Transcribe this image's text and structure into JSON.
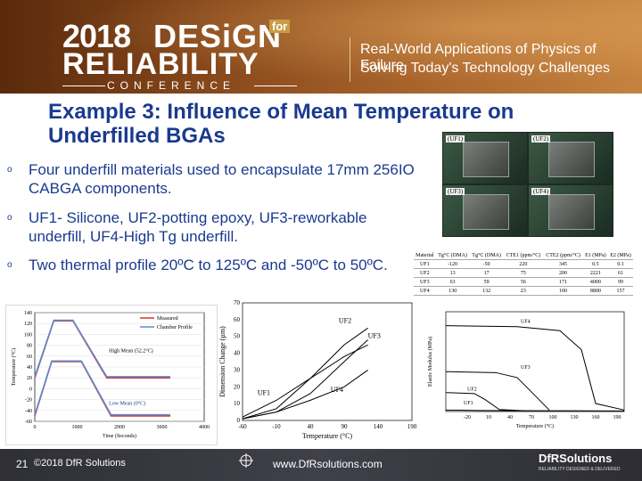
{
  "header": {
    "logo_year": "2018",
    "logo_design": "DESiGN",
    "logo_for": "for",
    "logo_reliability": "RELIABILITY",
    "logo_conference": "CONFERENCE",
    "tagline_1": "Real-World Applications of Physics of Failure",
    "tagline_2": "Solving Today's Technology Challenges"
  },
  "slide": {
    "title": "Example 3: Influence of Mean Temperature on Underfilled BGAs",
    "bullets": [
      "Four underfill materials used to encapsulate 17mm 256IO CABGA components.",
      "UF1- Silicone, UF2-potting epoxy, UF3-reworkable underfill, UF4-High Tg underfill.",
      "Two thermal profile 20ºC to 125ºC and -50ºC to 50ºC."
    ],
    "bullet_marker": "o"
  },
  "photos": {
    "labels": [
      "(UF1)",
      "(UF2)",
      "(UF3)",
      "(UF4)"
    ]
  },
  "table": {
    "headers": [
      "Material",
      "Tg°C (DMA)",
      "Tg°C (DMA)",
      "CTE1 (ppm/°C)",
      "CTE2 (ppm/°C)",
      "E1 (MPa)",
      "E2 (MPa)"
    ],
    "rows": [
      [
        "UF1",
        "-120",
        "-50",
        "220",
        "345",
        "0.5",
        "0.1"
      ],
      [
        "UF2",
        "13",
        "17",
        "75",
        "200",
        "2221",
        "61"
      ],
      [
        "UF3",
        "63",
        "59",
        "56",
        "171",
        "4000",
        "99"
      ],
      [
        "UF4",
        "130",
        "132",
        "23",
        "100",
        "8800",
        "157"
      ]
    ]
  },
  "chart_data": [
    {
      "type": "line",
      "title": "",
      "xlabel": "Time (Seconds)",
      "ylabel": "Temperature (°C)",
      "xlim": [
        0,
        4000
      ],
      "ylim": [
        -60,
        140
      ],
      "x_ticks": [
        "0",
        "1000",
        "2000",
        "3000",
        "4000"
      ],
      "y_ticks": [
        "-60",
        "-40",
        "-20",
        "0",
        "20",
        "40",
        "60",
        "80",
        "100",
        "120",
        "140"
      ],
      "legend": [
        "Measured",
        "Chamber Profile"
      ],
      "legend_position": "top-right",
      "annotations": [
        "High Mean (52.2°C)",
        "Low Mean (0°C)"
      ],
      "series": [
        {
          "name": "Measured",
          "color": "#d9342b",
          "x": [
            0,
            450,
            900,
            1700,
            2200,
            3200
          ],
          "y": [
            20,
            125,
            125,
            20,
            20,
            20
          ]
        },
        {
          "name": "Chamber Profile",
          "color": "#5a8ccf",
          "x": [
            0,
            450,
            900,
            1700,
            2200,
            3200
          ],
          "y": [
            22,
            126,
            126,
            22,
            22,
            22
          ]
        },
        {
          "name": "",
          "color": "#d9342b",
          "x": [
            0,
            400,
            1100,
            1800,
            2400,
            3200
          ],
          "y": [
            -50,
            50,
            50,
            -50,
            -50,
            -50
          ]
        },
        {
          "name": "",
          "color": "#5a8ccf",
          "x": [
            0,
            400,
            1100,
            1800,
            2400,
            3200
          ],
          "y": [
            -48,
            51,
            51,
            -48,
            -48,
            -48
          ]
        }
      ]
    },
    {
      "type": "line",
      "title": "",
      "xlabel": "Temperature (°C)",
      "ylabel": "Dimension Change (µm)",
      "xlim": [
        -60,
        190
      ],
      "ylim": [
        0,
        70
      ],
      "x_ticks": [
        "-60",
        "-10",
        "40",
        "90",
        "140",
        "190"
      ],
      "y_ticks": [
        "0",
        "10",
        "20",
        "30",
        "40",
        "50",
        "60",
        "70"
      ],
      "series": [
        {
          "name": "UF1",
          "color": "#000000",
          "x": [
            -60,
            -10,
            40,
            90,
            125
          ],
          "y": [
            2,
            12,
            25,
            38,
            45
          ]
        },
        {
          "name": "UF2",
          "color": "#000000",
          "x": [
            -60,
            -10,
            40,
            90,
            125
          ],
          "y": [
            1,
            7,
            25,
            45,
            55
          ]
        },
        {
          "name": "UF3",
          "color": "#000000",
          "x": [
            -60,
            -10,
            40,
            90,
            125
          ],
          "y": [
            1,
            5,
            16,
            35,
            48
          ]
        },
        {
          "name": "UF4",
          "color": "#000000",
          "x": [
            -60,
            -10,
            40,
            90,
            125
          ],
          "y": [
            1,
            5,
            12,
            20,
            30
          ]
        }
      ]
    },
    {
      "type": "line",
      "title": "",
      "xlabel": "Temperature (°C)",
      "ylabel": "Elastic Modulus (MPa)",
      "xlim": [
        -50,
        200
      ],
      "ylim": [
        0,
        10000
      ],
      "x_ticks": [
        "-20",
        "10",
        "40",
        "70",
        "100",
        "130",
        "160",
        "190"
      ],
      "y_ticks": [],
      "series": [
        {
          "name": "UF1",
          "color": "#000000",
          "x": [
            -50,
            0,
            100,
            200
          ],
          "y": [
            150,
            100,
            80,
            60
          ]
        },
        {
          "name": "UF2",
          "color": "#000000",
          "x": [
            -50,
            -10,
            5,
            25,
            60
          ],
          "y": [
            1900,
            1800,
            1200,
            200,
            80
          ]
        },
        {
          "name": "UF3",
          "color": "#000000",
          "x": [
            -50,
            20,
            50,
            75,
            95
          ],
          "y": [
            4000,
            3900,
            3400,
            1600,
            150
          ]
        },
        {
          "name": "UF4",
          "color": "#000000",
          "x": [
            -50,
            50,
            110,
            140,
            160,
            200
          ],
          "y": [
            8600,
            8500,
            8100,
            6200,
            800,
            150
          ]
        }
      ]
    }
  ],
  "footer": {
    "page_number": "21",
    "copyright": "©2018 DfR Solutions",
    "website": "www.DfRsolutions.com",
    "brand": "DfRSolutions",
    "brand_tagline": "RELIABILITY DESIGNED & DELIVERED"
  }
}
